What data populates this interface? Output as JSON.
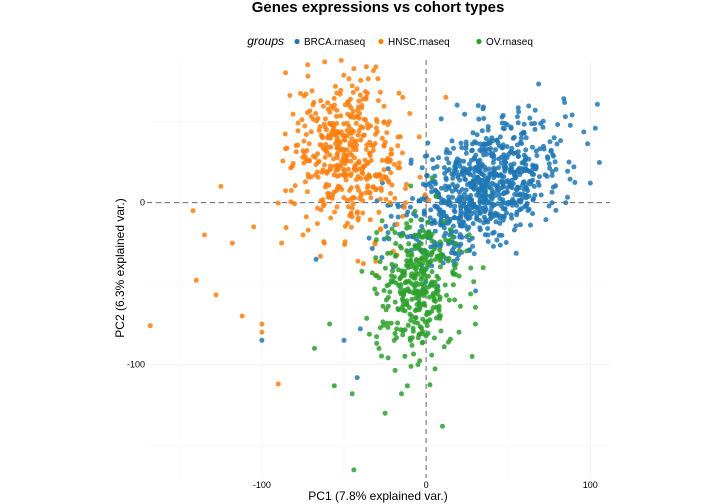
{
  "chart_data": {
    "type": "scatter",
    "title": "Genes expressions vs cohort types",
    "xlabel": "PC1 (7.8% explained var.)",
    "ylabel": "PC2 (6.3% explained var.)",
    "xlim": [
      -170,
      112
    ],
    "ylim": [
      -170,
      88
    ],
    "x_ticks": [
      -100,
      0,
      100
    ],
    "x_tick_labels": [
      "-100",
      "0",
      "100"
    ],
    "y_ticks": [
      -100,
      0
    ],
    "y_tick_labels": [
      "-100",
      "0"
    ],
    "reference_lines": {
      "x": 0,
      "y": 0,
      "style": "dashed"
    },
    "grid": true,
    "legend": {
      "title": "groups",
      "position": "top"
    },
    "series": [
      {
        "name": "BRCA.rnaseq",
        "color": "#1f77b4",
        "count": 800,
        "centroid": [
          35,
          10
        ],
        "spread": [
          24,
          19
        ],
        "tilt": 0.45,
        "extra_points": [
          [
            87,
            25
          ],
          [
            100,
            12
          ],
          [
            90,
            22
          ],
          [
            78,
            40
          ],
          [
            -100,
            -85
          ],
          [
            -50,
            -85
          ],
          [
            -42,
            -108
          ],
          [
            -67,
            -35
          ],
          [
            -40,
            -78
          ],
          [
            -20,
            -40
          ]
        ]
      },
      {
        "name": "HNSC.rnaseq",
        "color": "#ff7f0e",
        "count": 450,
        "centroid": [
          -48,
          30
        ],
        "spread": [
          17,
          24
        ],
        "tilt": -0.25,
        "extra_points": [
          [
            -168,
            -76
          ],
          [
            -140,
            -48
          ],
          [
            -128,
            -57
          ],
          [
            -112,
            -70
          ],
          [
            -100,
            -80
          ],
          [
            -90,
            -112
          ],
          [
            -100,
            -75
          ],
          [
            -125,
            10
          ],
          [
            -142,
            -5
          ],
          [
            -135,
            -20
          ],
          [
            -118,
            -25
          ],
          [
            -105,
            -15
          ],
          [
            -88,
            -25
          ],
          [
            -75,
            -20
          ],
          [
            -62,
            -25
          ],
          [
            -72,
            78
          ],
          [
            -45,
            72
          ],
          [
            12,
            65
          ],
          [
            -10,
            55
          ],
          [
            -30,
            -45
          ],
          [
            -20,
            -30
          ]
        ]
      },
      {
        "name": "OV.rnaseq",
        "color": "#2ca02c",
        "count": 350,
        "centroid": [
          -5,
          -52
        ],
        "spread": [
          13,
          20
        ],
        "tilt": 0.1,
        "extra_points": [
          [
            -44,
            -165
          ],
          [
            -25,
            -130
          ],
          [
            -15,
            -118
          ],
          [
            10,
            -138
          ],
          [
            -68,
            -90
          ],
          [
            28,
            -95
          ],
          [
            20,
            -80
          ],
          [
            -45,
            -118
          ],
          [
            -5,
            -100
          ],
          [
            30,
            -75
          ]
        ]
      }
    ]
  }
}
